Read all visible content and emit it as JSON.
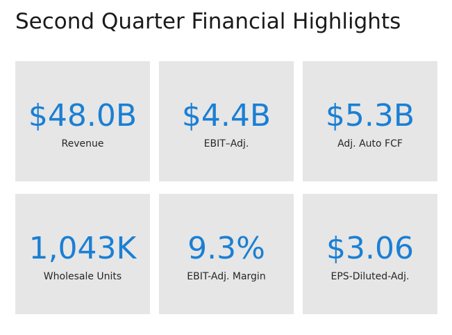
{
  "title": "Second Quarter Financial Highlights",
  "tiles": [
    {
      "value": "$48.0B",
      "label": "Revenue"
    },
    {
      "value": "$4.4B",
      "label": "EBIT–Adj."
    },
    {
      "value": "$5.3B",
      "label": "Adj. Auto FCF"
    },
    {
      "value": "1,043K",
      "label": "Wholesale Units"
    },
    {
      "value": "9.3%",
      "label": "EBIT-Adj. Margin"
    },
    {
      "value": "$3.06",
      "label": "EPS-Diluted-Adj."
    }
  ],
  "colors": {
    "value_blue": "#1a7fd4",
    "tile_background": "#e6e6e6",
    "title_text": "#1a1a1a"
  }
}
